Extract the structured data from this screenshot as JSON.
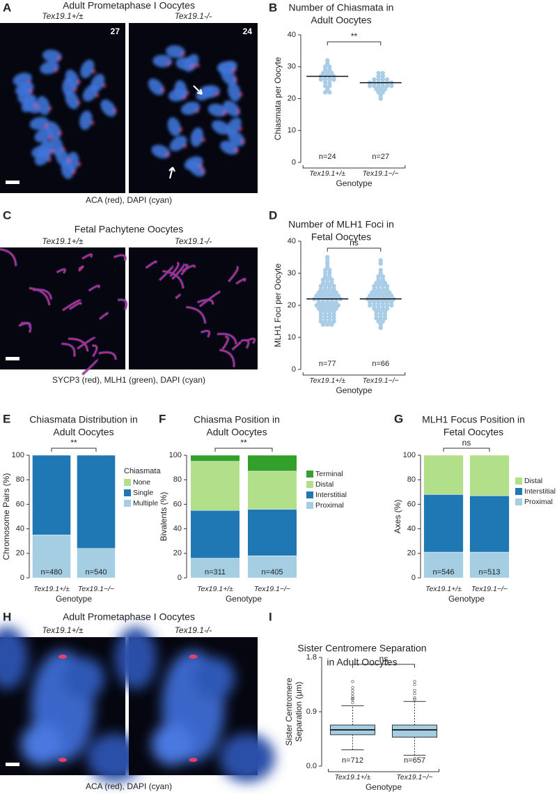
{
  "image_panels": [
    {
      "panel": "A",
      "title": "Adult Prometaphase I Oocytes",
      "genotypes": [
        "Tex19.1+/±",
        "Tex19.1-/-"
      ],
      "counts": [
        27,
        24
      ],
      "caption": "ACA (red), DAPI (cyan)"
    },
    {
      "panel": "C",
      "title": "Fetal Pachytene Oocytes",
      "genotypes": [
        "Tex19.1+/±",
        "Tex19.1-/-"
      ],
      "caption": "SYCP3 (red), MLH1 (green), DAPI (cyan)"
    },
    {
      "panel": "H",
      "title": "Adult Prometaphase I Oocytes",
      "genotypes": [
        "Tex19.1+/±",
        "Tex19.1-/-"
      ],
      "caption": "ACA (red), DAPI (cyan)"
    }
  ],
  "chart_data": [
    {
      "panel": "B",
      "type": "strip",
      "title": [
        "Number of Chiasmata in",
        "Adult Oocytes"
      ],
      "ylabel": "Chiasmata per Oocyte",
      "xlabel": "Genotype",
      "categories": [
        "Tex19.1+/±",
        "Tex19.1−/−"
      ],
      "color": "#a9cde6",
      "values": [
        [
          32,
          31,
          30,
          30,
          29,
          29,
          28,
          28,
          28,
          27,
          27,
          27,
          27,
          26,
          26,
          26,
          26,
          25,
          25,
          24,
          24,
          23,
          22,
          22
        ],
        [
          28,
          28,
          27,
          27,
          26,
          26,
          26,
          26,
          25,
          25,
          25,
          25,
          25,
          25,
          24,
          24,
          24,
          24,
          24,
          24,
          23,
          23,
          23,
          22,
          22,
          21,
          20
        ]
      ],
      "means": [
        27,
        25
      ],
      "n_labels": [
        "n=24",
        "n=27"
      ],
      "significance": "**",
      "ylim": [
        0,
        40
      ],
      "yticks": [
        0,
        10,
        20,
        30,
        40
      ]
    },
    {
      "panel": "D",
      "type": "strip",
      "title": [
        "Number of MLH1 Foci in",
        "Fetal Oocytes"
      ],
      "ylabel": "MLH1 Foci per Oocyte",
      "xlabel": "Genotype",
      "categories": [
        "Tex19.1+/±",
        "Tex19.1−/−"
      ],
      "color": "#a9cde6",
      "values": [
        [
          35,
          34,
          33,
          32,
          31,
          31,
          30,
          30,
          29,
          29,
          28,
          28,
          28,
          27,
          27,
          27,
          26,
          26,
          26,
          25,
          25,
          25,
          25,
          24,
          24,
          24,
          24,
          23,
          23,
          23,
          23,
          23,
          22,
          22,
          22,
          22,
          22,
          22,
          21,
          21,
          21,
          21,
          21,
          20,
          20,
          20,
          20,
          20,
          19,
          19,
          19,
          19,
          18,
          18,
          18,
          18,
          17,
          17,
          17,
          17,
          16,
          16,
          16,
          16,
          15,
          15,
          15,
          15,
          14,
          14,
          14,
          26,
          24,
          22,
          20,
          19,
          23
        ],
        [
          34,
          33,
          31,
          30,
          29,
          29,
          28,
          28,
          27,
          27,
          27,
          26,
          26,
          26,
          25,
          25,
          25,
          25,
          24,
          24,
          24,
          24,
          23,
          23,
          23,
          23,
          23,
          22,
          22,
          22,
          22,
          22,
          22,
          21,
          21,
          21,
          21,
          21,
          20,
          20,
          20,
          20,
          20,
          19,
          19,
          19,
          19,
          18,
          18,
          18,
          17,
          17,
          17,
          16,
          16,
          16,
          15,
          15,
          14,
          13,
          24,
          22,
          21,
          20,
          26,
          23
        ]
      ],
      "means": [
        22,
        22
      ],
      "n_labels": [
        "n=77",
        "n=66"
      ],
      "significance": "ns",
      "ylim": [
        0,
        40
      ],
      "yticks": [
        0,
        10,
        20,
        30,
        40
      ]
    },
    {
      "panel": "E",
      "type": "stacked_bar",
      "title": [
        "Chiasmata Distribution in",
        "Adult Oocytes"
      ],
      "ylabel": "Chromosome Pairs (%)",
      "xlabel": "Genotype",
      "categories": [
        "Tex19.1+/±",
        "Tex19.1−/−"
      ],
      "legend_title": "Chiasmata",
      "series": [
        {
          "name": "None",
          "color": "#b2df8a",
          "values": [
            0,
            0
          ]
        },
        {
          "name": "Single",
          "color": "#1f78b4",
          "values": [
            65,
            76
          ]
        },
        {
          "name": "Multiple",
          "color": "#a6cee3",
          "values": [
            35,
            24
          ]
        }
      ],
      "n_labels": [
        "n=480",
        "n=540"
      ],
      "significance": "**",
      "ylim": [
        0,
        100
      ],
      "yticks": [
        0,
        20,
        40,
        60,
        80,
        100
      ]
    },
    {
      "panel": "F",
      "type": "stacked_bar",
      "title": [
        "Chiasma Position in",
        "Adult Oocytes"
      ],
      "ylabel": "Bivalents (%)",
      "xlabel": "Genotype",
      "categories": [
        "Tex19.1+/±",
        "Tex19.1−/−"
      ],
      "series": [
        {
          "name": "Terminal",
          "color": "#33a02c",
          "values": [
            5,
            13
          ]
        },
        {
          "name": "Distal",
          "color": "#b2df8a",
          "values": [
            40,
            31
          ]
        },
        {
          "name": "Interstitial",
          "color": "#1f78b4",
          "values": [
            39,
            38
          ]
        },
        {
          "name": "Proximal",
          "color": "#a6cee3",
          "values": [
            16,
            18
          ]
        }
      ],
      "n_labels": [
        "n=311",
        "n=405"
      ],
      "significance": "**",
      "ylim": [
        0,
        100
      ],
      "yticks": [
        0,
        20,
        40,
        60,
        80,
        100
      ]
    },
    {
      "panel": "G",
      "type": "stacked_bar",
      "title": [
        "MLH1 Focus Position in",
        "Fetal Oocytes"
      ],
      "ylabel": "Axes (%)",
      "xlabel": "Genotype",
      "categories": [
        "Tex19.1+/±",
        "Tex19.1−/−"
      ],
      "series": [
        {
          "name": "Distal",
          "color": "#b2df8a",
          "values": [
            32,
            33
          ]
        },
        {
          "name": "Interstitial",
          "color": "#1f78b4",
          "values": [
            47,
            46
          ]
        },
        {
          "name": "Proximal",
          "color": "#a6cee3",
          "values": [
            21,
            21
          ]
        }
      ],
      "n_labels": [
        "n=546",
        "n=513"
      ],
      "significance": "ns",
      "ylim": [
        0,
        100
      ],
      "yticks": [
        0,
        20,
        40,
        60,
        80,
        100
      ]
    },
    {
      "panel": "I",
      "type": "box",
      "title": [
        "Sister Centromere Separation",
        "in Adult Oocytes"
      ],
      "ylabel": [
        "Sister Centromere",
        "Separation (µm)"
      ],
      "xlabel": "Genotype",
      "categories": [
        "Tex19.1+/±",
        "Tex19.1−/−"
      ],
      "color": "#a6cee3",
      "boxes": [
        {
          "whisker_low": 0.27,
          "q1": 0.52,
          "median": 0.6,
          "q3": 0.68,
          "whisker_high": 1.0,
          "outliers": [
            1.05,
            1.1,
            1.12,
            1.15,
            1.2,
            1.25,
            1.3,
            1.4
          ]
        },
        {
          "whisker_low": 0.18,
          "q1": 0.48,
          "median": 0.6,
          "q3": 0.68,
          "whisker_high": 1.07,
          "outliers": [
            1.1,
            1.13,
            1.2,
            1.25,
            1.35,
            1.4
          ]
        }
      ],
      "n_labels": [
        "n=712",
        "n=657"
      ],
      "significance": "ns",
      "ylim": [
        0,
        1.8
      ],
      "yticks": [
        {
          "value": 0,
          "label": "0.0"
        },
        {
          "value": 0.9,
          "label": "0.9"
        },
        {
          "value": 1.8,
          "label": "1.8"
        }
      ]
    }
  ]
}
